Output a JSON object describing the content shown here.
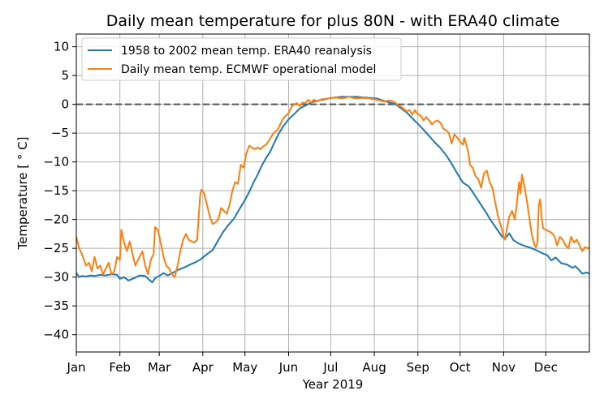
{
  "chart_data": {
    "type": "line",
    "title": "Daily mean temperature for plus 80N - with ERA40 climate",
    "xlabel": "Year 2019",
    "ylabel": "Temperature [$^\\circ$C]",
    "ylabel_display": "Temperature [ ° C]",
    "xlim_day": [
      1,
      366
    ],
    "ylim": [
      -43,
      12.2
    ],
    "yticks": [
      10,
      5,
      0,
      -5,
      -10,
      -15,
      -20,
      -25,
      -30,
      -35,
      -40
    ],
    "ytick_labels": [
      "10",
      "5",
      "0",
      "−5",
      "−10",
      "−15",
      "−20",
      "−25",
      "−30",
      "−35",
      "−40"
    ],
    "xticks": [
      {
        "label": "Jan",
        "day": 1
      },
      {
        "label": "Feb",
        "day": 32
      },
      {
        "label": "Mar",
        "day": 60
      },
      {
        "label": "Apr",
        "day": 91
      },
      {
        "label": "May",
        "day": 121
      },
      {
        "label": "Jun",
        "day": 152
      },
      {
        "label": "Jul",
        "day": 182
      },
      {
        "label": "Aug",
        "day": 213
      },
      {
        "label": "Sep",
        "day": 244
      },
      {
        "label": "Oct",
        "day": 274
      },
      {
        "label": "Nov",
        "day": 305
      },
      {
        "label": "Dec",
        "day": 335
      }
    ],
    "grid": true,
    "legend_position": "top-left",
    "reference_line": {
      "y": 0,
      "style": "dashed",
      "color": "#555555"
    },
    "series": [
      {
        "name": "1958 to 2002 mean temp. ERA40 reanalysis",
        "color": "#1f77b4",
        "points": [
          [
            1,
            -29.3
          ],
          [
            3,
            -30.0
          ],
          [
            5,
            -29.8
          ],
          [
            8,
            -29.9
          ],
          [
            11,
            -29.7
          ],
          [
            14,
            -29.8
          ],
          [
            18,
            -29.6
          ],
          [
            22,
            -29.7
          ],
          [
            26,
            -29.5
          ],
          [
            30,
            -29.6
          ],
          [
            32,
            -30.3
          ],
          [
            35,
            -30.0
          ],
          [
            38,
            -30.6
          ],
          [
            42,
            -30.2
          ],
          [
            46,
            -29.7
          ],
          [
            50,
            -29.8
          ],
          [
            53,
            -30.5
          ],
          [
            55,
            -30.9
          ],
          [
            57,
            -30.2
          ],
          [
            60,
            -29.8
          ],
          [
            63,
            -29.3
          ],
          [
            66,
            -29.7
          ],
          [
            70,
            -29.2
          ],
          [
            74,
            -28.7
          ],
          [
            78,
            -28.3
          ],
          [
            82,
            -27.8
          ],
          [
            86,
            -27.4
          ],
          [
            90,
            -26.8
          ],
          [
            94,
            -26.0
          ],
          [
            98,
            -25.3
          ],
          [
            101,
            -24.0
          ],
          [
            105,
            -22.3
          ],
          [
            109,
            -21.0
          ],
          [
            113,
            -19.9
          ],
          [
            117,
            -18.2
          ],
          [
            121,
            -16.6
          ],
          [
            124,
            -15.2
          ],
          [
            127,
            -13.6
          ],
          [
            130,
            -12.2
          ],
          [
            133,
            -10.6
          ],
          [
            136,
            -9.3
          ],
          [
            139,
            -8.2
          ],
          [
            142,
            -6.6
          ],
          [
            145,
            -5.1
          ],
          [
            148,
            -3.9
          ],
          [
            152,
            -2.6
          ],
          [
            156,
            -1.7
          ],
          [
            160,
            -0.7
          ],
          [
            164,
            -0.2
          ],
          [
            168,
            0.3
          ],
          [
            172,
            0.6
          ],
          [
            176,
            0.8
          ],
          [
            180,
            1.0
          ],
          [
            185,
            1.2
          ],
          [
            190,
            1.3
          ],
          [
            195,
            1.3
          ],
          [
            200,
            1.3
          ],
          [
            205,
            1.2
          ],
          [
            210,
            1.1
          ],
          [
            215,
            1.0
          ],
          [
            220,
            0.6
          ],
          [
            224,
            0.3
          ],
          [
            228,
            0.0
          ],
          [
            232,
            -0.7
          ],
          [
            236,
            -1.4
          ],
          [
            240,
            -2.4
          ],
          [
            244,
            -3.4
          ],
          [
            248,
            -4.4
          ],
          [
            252,
            -5.5
          ],
          [
            256,
            -6.6
          ],
          [
            260,
            -7.6
          ],
          [
            264,
            -8.8
          ],
          [
            268,
            -10.3
          ],
          [
            272,
            -12.0
          ],
          [
            276,
            -13.6
          ],
          [
            280,
            -14.2
          ],
          [
            284,
            -15.6
          ],
          [
            288,
            -17.1
          ],
          [
            292,
            -18.6
          ],
          [
            296,
            -20.2
          ],
          [
            300,
            -21.6
          ],
          [
            304,
            -23.0
          ],
          [
            306,
            -23.3
          ],
          [
            309,
            -22.4
          ],
          [
            312,
            -23.6
          ],
          [
            316,
            -24.2
          ],
          [
            320,
            -24.6
          ],
          [
            324,
            -24.9
          ],
          [
            328,
            -25.3
          ],
          [
            332,
            -25.8
          ],
          [
            336,
            -26.2
          ],
          [
            339,
            -27.1
          ],
          [
            342,
            -26.6
          ],
          [
            346,
            -27.6
          ],
          [
            350,
            -27.8
          ],
          [
            354,
            -28.4
          ],
          [
            356,
            -28.1
          ],
          [
            358,
            -28.6
          ],
          [
            361,
            -29.4
          ],
          [
            364,
            -29.2
          ],
          [
            366,
            -29.4
          ]
        ]
      },
      {
        "name": "Daily mean temp. ECMWF operational model",
        "color": "#ff7f0e",
        "points": [
          [
            1,
            -23.0
          ],
          [
            3,
            -25.0
          ],
          [
            5,
            -26.0
          ],
          [
            8,
            -28.0
          ],
          [
            10,
            -27.5
          ],
          [
            12,
            -29.0
          ],
          [
            14,
            -26.5
          ],
          [
            16,
            -28.5
          ],
          [
            18,
            -28.0
          ],
          [
            20,
            -29.5
          ],
          [
            22,
            -28.5
          ],
          [
            24,
            -27.5
          ],
          [
            26,
            -29.5
          ],
          [
            28,
            -29.0
          ],
          [
            30,
            -26.5
          ],
          [
            32,
            -27.0
          ],
          [
            33,
            -21.8
          ],
          [
            35,
            -24.0
          ],
          [
            37,
            -25.5
          ],
          [
            39,
            -23.8
          ],
          [
            41,
            -26.0
          ],
          [
            43,
            -28.0
          ],
          [
            46,
            -26.5
          ],
          [
            48,
            -25.5
          ],
          [
            50,
            -28.0
          ],
          [
            52,
            -29.5
          ],
          [
            54,
            -27.0
          ],
          [
            56,
            -26.0
          ],
          [
            57,
            -21.3
          ],
          [
            59,
            -21.8
          ],
          [
            61,
            -24.0
          ],
          [
            63,
            -26.5
          ],
          [
            65,
            -28.0
          ],
          [
            67,
            -28.5
          ],
          [
            69,
            -29.5
          ],
          [
            71,
            -30.0
          ],
          [
            73,
            -28.0
          ],
          [
            75,
            -25.5
          ],
          [
            77,
            -23.5
          ],
          [
            79,
            -22.5
          ],
          [
            81,
            -23.5
          ],
          [
            83,
            -23.8
          ],
          [
            85,
            -24.0
          ],
          [
            87,
            -23.5
          ],
          [
            89,
            -16.0
          ],
          [
            90,
            -14.8
          ],
          [
            92,
            -15.5
          ],
          [
            94,
            -17.5
          ],
          [
            96,
            -19.5
          ],
          [
            98,
            -20.8
          ],
          [
            100,
            -20.5
          ],
          [
            102,
            -20.0
          ],
          [
            104,
            -18.0
          ],
          [
            106,
            -18.5
          ],
          [
            108,
            -19.0
          ],
          [
            110,
            -17.5
          ],
          [
            112,
            -15.0
          ],
          [
            114,
            -13.5
          ],
          [
            116,
            -13.8
          ],
          [
            118,
            -10.5
          ],
          [
            120,
            -11.0
          ],
          [
            122,
            -8.5
          ],
          [
            124,
            -7.2
          ],
          [
            126,
            -7.5
          ],
          [
            128,
            -7.8
          ],
          [
            130,
            -7.5
          ],
          [
            132,
            -7.8
          ],
          [
            134,
            -7.3
          ],
          [
            136,
            -7.0
          ],
          [
            138,
            -6.3
          ],
          [
            140,
            -5.5
          ],
          [
            142,
            -4.8
          ],
          [
            144,
            -4.5
          ],
          [
            146,
            -3.5
          ],
          [
            148,
            -2.5
          ],
          [
            150,
            -2.0
          ],
          [
            152,
            -1.5
          ],
          [
            154,
            -0.5
          ],
          [
            156,
            0.0
          ],
          [
            158,
            0.2
          ],
          [
            160,
            -0.3
          ],
          [
            162,
            0.3
          ],
          [
            164,
            0.2
          ],
          [
            166,
            0.8
          ],
          [
            168,
            0.3
          ],
          [
            170,
            0.8
          ],
          [
            172,
            0.5
          ],
          [
            176,
            0.9
          ],
          [
            180,
            1.0
          ],
          [
            185,
            1.2
          ],
          [
            190,
            1.0
          ],
          [
            195,
            1.3
          ],
          [
            200,
            1.0
          ],
          [
            205,
            1.1
          ],
          [
            210,
            1.0
          ],
          [
            215,
            0.8
          ],
          [
            220,
            0.5
          ],
          [
            224,
            0.7
          ],
          [
            228,
            0.3
          ],
          [
            230,
            -0.2
          ],
          [
            232,
            -0.4
          ],
          [
            234,
            -0.8
          ],
          [
            236,
            -1.2
          ],
          [
            238,
            -1.0
          ],
          [
            240,
            -1.8
          ],
          [
            242,
            -1.0
          ],
          [
            243,
            -1.5
          ],
          [
            246,
            -2.0
          ],
          [
            248,
            -2.8
          ],
          [
            250,
            -2.2
          ],
          [
            252,
            -2.8
          ],
          [
            254,
            -3.5
          ],
          [
            256,
            -3.0
          ],
          [
            258,
            -2.8
          ],
          [
            260,
            -3.2
          ],
          [
            262,
            -4.2
          ],
          [
            264,
            -4.5
          ],
          [
            266,
            -5.0
          ],
          [
            268,
            -6.8
          ],
          [
            270,
            -5.2
          ],
          [
            272,
            -5.8
          ],
          [
            274,
            -6.5
          ],
          [
            276,
            -7.0
          ],
          [
            277,
            -5.8
          ],
          [
            280,
            -8.5
          ],
          [
            281,
            -10.5
          ],
          [
            283,
            -11.0
          ],
          [
            285,
            -12.5
          ],
          [
            287,
            -13.0
          ],
          [
            289,
            -14.5
          ],
          [
            291,
            -12.0
          ],
          [
            293,
            -11.5
          ],
          [
            295,
            -13.5
          ],
          [
            297,
            -14.5
          ],
          [
            299,
            -17.0
          ],
          [
            301,
            -19.5
          ],
          [
            303,
            -21.0
          ],
          [
            305,
            -23.0
          ],
          [
            306,
            -23.5
          ],
          [
            307,
            -22.0
          ],
          [
            309,
            -19.5
          ],
          [
            311,
            -18.5
          ],
          [
            313,
            -20.0
          ],
          [
            314,
            -18.0
          ],
          [
            316,
            -13.5
          ],
          [
            317,
            -15.5
          ],
          [
            318,
            -12.2
          ],
          [
            320,
            -14.5
          ],
          [
            322,
            -17.5
          ],
          [
            324,
            -21.0
          ],
          [
            325,
            -22.5
          ],
          [
            326,
            -23.5
          ],
          [
            327,
            -24.5
          ],
          [
            328,
            -24.8
          ],
          [
            329,
            -24.0
          ],
          [
            330,
            -17.5
          ],
          [
            331,
            -16.5
          ],
          [
            332,
            -19.5
          ],
          [
            333,
            -21.5
          ],
          [
            335,
            -21.8
          ],
          [
            337,
            -22.0
          ],
          [
            339,
            -22.3
          ],
          [
            341,
            -22.8
          ],
          [
            343,
            -24.5
          ],
          [
            345,
            -23.0
          ],
          [
            347,
            -23.5
          ],
          [
            349,
            -24.5
          ],
          [
            351,
            -25.0
          ],
          [
            353,
            -23.0
          ],
          [
            355,
            -24.0
          ],
          [
            357,
            -23.5
          ],
          [
            359,
            -24.5
          ],
          [
            361,
            -25.5
          ],
          [
            363,
            -24.8
          ],
          [
            365,
            -25.0
          ],
          [
            366,
            -24.8
          ]
        ]
      }
    ]
  }
}
